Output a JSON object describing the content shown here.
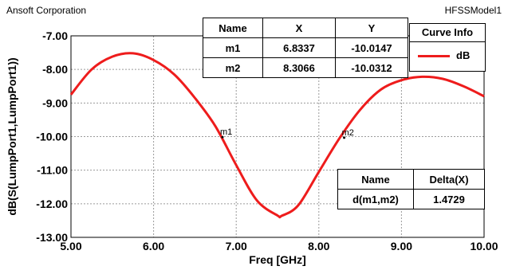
{
  "header": {
    "company": "Ansoft Corporation",
    "model": "HFSSModel1"
  },
  "chart_data": {
    "type": "line",
    "xlabel": "Freq [GHz]",
    "ylabel": "dB(S(LumpPort1,LumpPort1))",
    "xlim": [
      5.0,
      10.0
    ],
    "ylim": [
      -13.0,
      -7.0
    ],
    "xticks": [
      "5.00",
      "6.00",
      "7.00",
      "8.00",
      "9.00",
      "10.00"
    ],
    "yticks": [
      "-7.00",
      "-8.00",
      "-9.00",
      "-10.00",
      "-11.00",
      "-12.00",
      "-13.00"
    ],
    "grid": true,
    "series": [
      {
        "name": "dB",
        "color": "#ee1c1c",
        "x": [
          5.0,
          5.25,
          5.5,
          5.75,
          6.0,
          6.25,
          6.5,
          6.75,
          7.0,
          7.25,
          7.5,
          7.55,
          7.75,
          8.0,
          8.25,
          8.5,
          8.75,
          9.0,
          9.25,
          9.5,
          9.75,
          10.0
        ],
        "y": [
          -8.75,
          -8.0,
          -7.62,
          -7.52,
          -7.72,
          -8.15,
          -8.85,
          -9.7,
          -10.85,
          -11.9,
          -12.35,
          -12.36,
          -12.05,
          -11.05,
          -10.05,
          -9.2,
          -8.6,
          -8.32,
          -8.22,
          -8.28,
          -8.5,
          -8.8
        ]
      }
    ],
    "markers": [
      {
        "name": "m1",
        "x": 6.8337,
        "y": -10.0147
      },
      {
        "name": "m2",
        "x": 8.3066,
        "y": -10.0312
      }
    ],
    "marker_table": {
      "headers": [
        "Name",
        "X",
        "Y"
      ],
      "rows": [
        [
          "m1",
          "6.8337",
          "-10.0147"
        ],
        [
          "m2",
          "8.3066",
          "-10.0312"
        ]
      ]
    },
    "delta_table": {
      "headers": [
        "Name",
        "Delta(X)"
      ],
      "rows": [
        [
          "d(m1,m2)",
          "1.4729"
        ]
      ]
    },
    "legend": {
      "title": "Curve Info",
      "placement": "top-right",
      "entries": [
        "dB"
      ]
    }
  }
}
